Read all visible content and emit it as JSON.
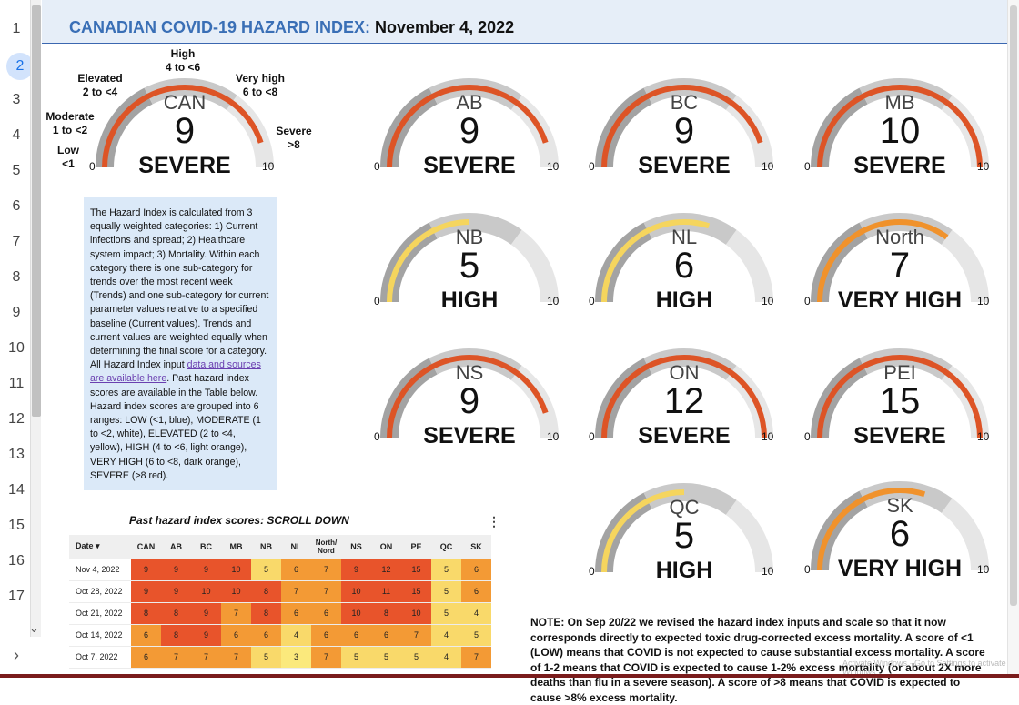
{
  "header": {
    "title": "CANADIAN COVID-19 HAZARD INDEX:",
    "date": "November 4, 2022"
  },
  "row_numbers": [
    "1",
    "2",
    "3",
    "4",
    "5",
    "6",
    "7",
    "8",
    "9",
    "10",
    "11",
    "12",
    "13",
    "14",
    "15",
    "16",
    "17"
  ],
  "selected_row": "2",
  "scale_labels": {
    "high": "High",
    "high_range": "4 to <6",
    "elevated": "Elevated",
    "elevated_range": "2 to <4",
    "very_high": "Very high",
    "very_high_range": "6 to <8",
    "moderate": "Moderate",
    "moderate_range": "1 to <2",
    "severe": "Severe",
    "severe_range": ">8",
    "low": "Low",
    "low_range": "<1"
  },
  "colors": {
    "severe": "#dd5426",
    "very_high": "#f0922c",
    "high": "#f5d55e",
    "track_dark": "#a3a3a3",
    "track_mid": "#c9c9c9",
    "track_light": "#e6e6e6"
  },
  "gauges": [
    {
      "code": "CAN",
      "value": 9,
      "level": "SEVERE",
      "min": "0",
      "max": "10"
    },
    {
      "code": "AB",
      "value": 9,
      "level": "SEVERE",
      "min": "0",
      "max": "10"
    },
    {
      "code": "BC",
      "value": 9,
      "level": "SEVERE",
      "min": "0",
      "max": "10"
    },
    {
      "code": "MB",
      "value": 10,
      "level": "SEVERE",
      "min": "0",
      "max": "10"
    },
    {
      "code": "NB",
      "value": 5,
      "level": "HIGH",
      "min": "0",
      "max": "10"
    },
    {
      "code": "NL",
      "value": 6,
      "level": "HIGH",
      "min": "0",
      "max": "10"
    },
    {
      "code": "North",
      "value": 7,
      "level": "VERY HIGH",
      "min": "0",
      "max": "10"
    },
    {
      "code": "NS",
      "value": 9,
      "level": "SEVERE",
      "min": "0",
      "max": "10"
    },
    {
      "code": "ON",
      "value": 12,
      "level": "SEVERE",
      "min": "0",
      "max": "10"
    },
    {
      "code": "PEI",
      "value": 15,
      "level": "SEVERE",
      "min": "0",
      "max": "10"
    },
    {
      "code": "QC",
      "value": 5,
      "level": "HIGH",
      "min": "0",
      "max": "10"
    },
    {
      "code": "SK",
      "value": 6,
      "level": "VERY HIGH",
      "min": "0",
      "max": "10"
    }
  ],
  "info": {
    "text_before_link": "The Hazard Index is calculated from 3 equally weighted categories: 1) Current infections and spread; 2) Healthcare system impact; 3) Mortality. Within each category there is one sub-category for trends over the most recent week (Trends) and one sub-category for current parameter values relative to a specified baseline (Current values). Trends and current values are weighted equally when determining the final score for a category. All Hazard Index input ",
    "link_text": "data and sources are available here",
    "text_after_link": ". Past hazard index scores are available in the Table below. Hazard index scores are grouped into 6 ranges: LOW (<1, blue), MODERATE (1 to <2, white), ELEVATED (2 to <4, yellow), HIGH (4 to <6, light orange), VERY HIGH (6 to <8, dark orange), SEVERE (>8 red)."
  },
  "table": {
    "title": "Past hazard index scores: SCROLL DOWN",
    "menu_icon": "⋮",
    "date_header": "Date ▾",
    "columns": [
      "CAN",
      "AB",
      "BC",
      "MB",
      "NB",
      "NL",
      "North/\nNord",
      "NS",
      "ON",
      "PE",
      "QC",
      "SK"
    ],
    "rows": [
      {
        "date": "Nov 4, 2022",
        "values": [
          9,
          9,
          9,
          10,
          5,
          6,
          7,
          9,
          12,
          15,
          5,
          6
        ]
      },
      {
        "date": "Oct 28, 2022",
        "values": [
          9,
          9,
          10,
          10,
          8,
          7,
          7,
          10,
          11,
          15,
          5,
          6
        ]
      },
      {
        "date": "Oct 21, 2022",
        "values": [
          8,
          8,
          9,
          7,
          8,
          6,
          6,
          10,
          8,
          10,
          5,
          4
        ]
      },
      {
        "date": "Oct 14, 2022",
        "values": [
          6,
          8,
          9,
          6,
          6,
          4,
          6,
          6,
          6,
          7,
          4,
          5
        ]
      },
      {
        "date": "Oct 7, 2022",
        "values": [
          6,
          7,
          7,
          7,
          5,
          3,
          7,
          5,
          5,
          5,
          4,
          7
        ]
      }
    ]
  },
  "note": "NOTE: On Sep 20/22 we revised the hazard index inputs and scale so that it now corresponds directly to expected toxic drug-corrected excess mortality. A score of <1 (LOW) means that COVID is not expected to cause substantial excess mortality. A score of 1-2 means that COVID is expected to cause 1-2% excess mortality (or about 2X more deaths than flu in a severe season). A score of >8 means that COVID is expected to cause >8% excess mortality.",
  "watermark": "Activate Windows · Go to Settings to activate Windows."
}
